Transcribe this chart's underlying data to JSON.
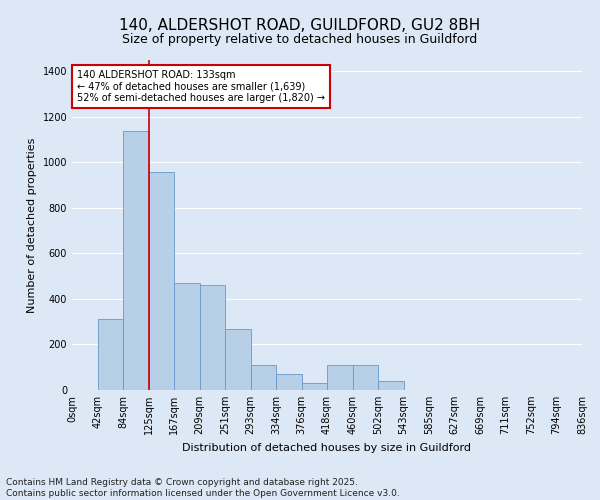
{
  "title": "140, ALDERSHOT ROAD, GUILDFORD, GU2 8BH",
  "subtitle": "Size of property relative to detached houses in Guildford",
  "xlabel": "Distribution of detached houses by size in Guildford",
  "ylabel": "Number of detached properties",
  "bin_labels": [
    "0sqm",
    "42sqm",
    "84sqm",
    "125sqm",
    "167sqm",
    "209sqm",
    "251sqm",
    "293sqm",
    "334sqm",
    "376sqm",
    "418sqm",
    "460sqm",
    "502sqm",
    "543sqm",
    "585sqm",
    "627sqm",
    "669sqm",
    "711sqm",
    "752sqm",
    "794sqm",
    "836sqm"
  ],
  "bar_values": [
    2,
    310,
    1140,
    960,
    470,
    460,
    270,
    110,
    70,
    30,
    110,
    110,
    40,
    0,
    0,
    0,
    0,
    0,
    0,
    0
  ],
  "bar_color": "#b8cfe8",
  "bar_edge_color": "#6699cc",
  "vline_x_bin": 3,
  "vline_color": "#cc0000",
  "annotation_text": "140 ALDERSHOT ROAD: 133sqm\n← 47% of detached houses are smaller (1,639)\n52% of semi-detached houses are larger (1,820) →",
  "annotation_box_facecolor": "#ffffff",
  "annotation_box_edgecolor": "#cc0000",
  "ylim": [
    0,
    1450
  ],
  "yticks": [
    0,
    200,
    400,
    600,
    800,
    1000,
    1200,
    1400
  ],
  "fig_bg_color": "#dce8f5",
  "plot_bg_color": "#dce8f5",
  "grid_color": "#ffffff",
  "footer_line1": "Contains HM Land Registry data © Crown copyright and database right 2025.",
  "footer_line2": "Contains public sector information licensed under the Open Government Licence v3.0.",
  "title_fontsize": 11,
  "subtitle_fontsize": 9,
  "tick_fontsize": 7,
  "ylabel_fontsize": 8,
  "xlabel_fontsize": 8,
  "footer_fontsize": 6.5,
  "annotation_fontsize": 7
}
